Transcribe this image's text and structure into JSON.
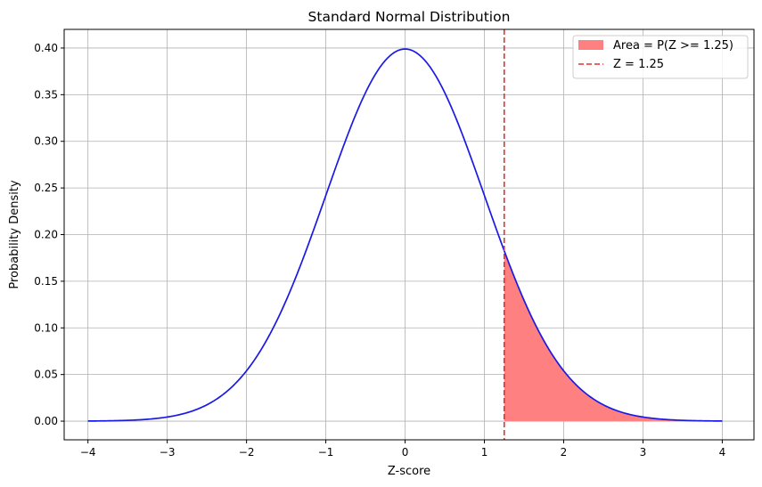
{
  "chart_data": {
    "type": "line",
    "title": "Standard Normal Distribution",
    "xlabel": "Z-score",
    "ylabel": "Probability Density",
    "xlim": [
      -4.3,
      4.4
    ],
    "ylim": [
      -0.02,
      0.42
    ],
    "x_ticks": [
      -4,
      -3,
      -2,
      -1,
      0,
      1,
      2,
      3,
      4
    ],
    "x_tick_labels": [
      "−4",
      "−3",
      "−2",
      "−1",
      "0",
      "1",
      "2",
      "3",
      "4"
    ],
    "y_ticks": [
      0.0,
      0.05,
      0.1,
      0.15,
      0.2,
      0.25,
      0.3,
      0.35,
      0.4
    ],
    "y_tick_labels": [
      "0.00",
      "0.05",
      "0.10",
      "0.15",
      "0.20",
      "0.25",
      "0.30",
      "0.35",
      "0.40"
    ],
    "grid": true,
    "legend_position": "top-right",
    "series": [
      {
        "kind": "line",
        "color": "#1a1ae6",
        "x": [
          -4,
          -3.5,
          -3,
          -2.5,
          -2,
          -1.75,
          -1.5,
          -1.25,
          -1,
          -0.75,
          -0.5,
          -0.25,
          0,
          0.25,
          0.5,
          0.75,
          1,
          1.25,
          1.5,
          1.75,
          2,
          2.5,
          3,
          3.5,
          4
        ],
        "y": [
          0.0001,
          0.0009,
          0.0044,
          0.0175,
          0.054,
          0.0863,
          0.1295,
          0.1826,
          0.242,
          0.3011,
          0.3521,
          0.3867,
          0.3989,
          0.3867,
          0.3521,
          0.3011,
          0.242,
          0.1826,
          0.1295,
          0.0863,
          0.054,
          0.0175,
          0.0044,
          0.0009,
          0.0001
        ]
      }
    ],
    "shaded_area": {
      "label": "Area = P(Z >= 1.25)",
      "from_x": 1.25,
      "to_x": 4,
      "color": "#ff8080"
    },
    "vline": {
      "label": "Z = 1.25",
      "x": 1.25,
      "color": "#e03030",
      "style": "dashed"
    }
  }
}
